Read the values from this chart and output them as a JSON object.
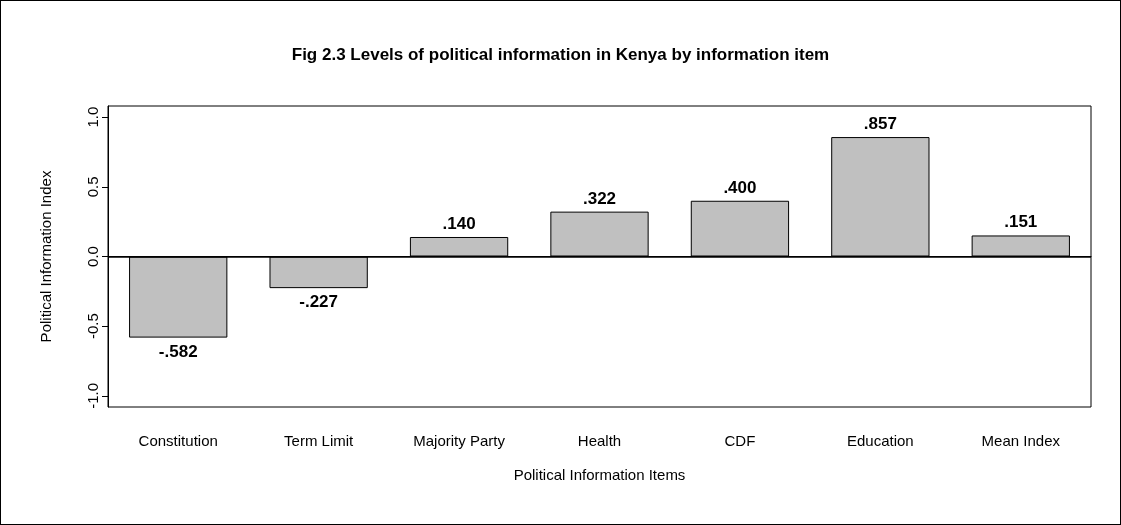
{
  "chart_data": {
    "type": "bar",
    "title": "Fig 2.3 Levels of political information in Kenya by information item",
    "xlabel": "Political Information Items",
    "ylabel": "Political Information Index",
    "categories": [
      "Constitution",
      "Term Limit",
      "Majority Party",
      "Health",
      "CDF",
      "Education",
      "Mean Index"
    ],
    "values": [
      -0.582,
      -0.227,
      0.14,
      0.322,
      0.4,
      0.857,
      0.151
    ],
    "value_labels": [
      "-.582",
      "-.227",
      ".140",
      ".322",
      ".400",
      ".857",
      ".151"
    ],
    "color": "#c0c0c0",
    "ylim": [
      -1.08,
      1.08
    ],
    "yticks": [
      {
        "value": -1,
        "label": "-1.0"
      },
      {
        "value": -0.5,
        "label": "-0.5"
      },
      {
        "value": 0,
        "label": "0.0"
      },
      {
        "value": 0.5,
        "label": "0.5"
      },
      {
        "value": 1,
        "label": "1.0"
      }
    ],
    "ref_lines": [
      {
        "axis": "y",
        "value": 0,
        "color": "#000000"
      }
    ],
    "grid": false
  }
}
